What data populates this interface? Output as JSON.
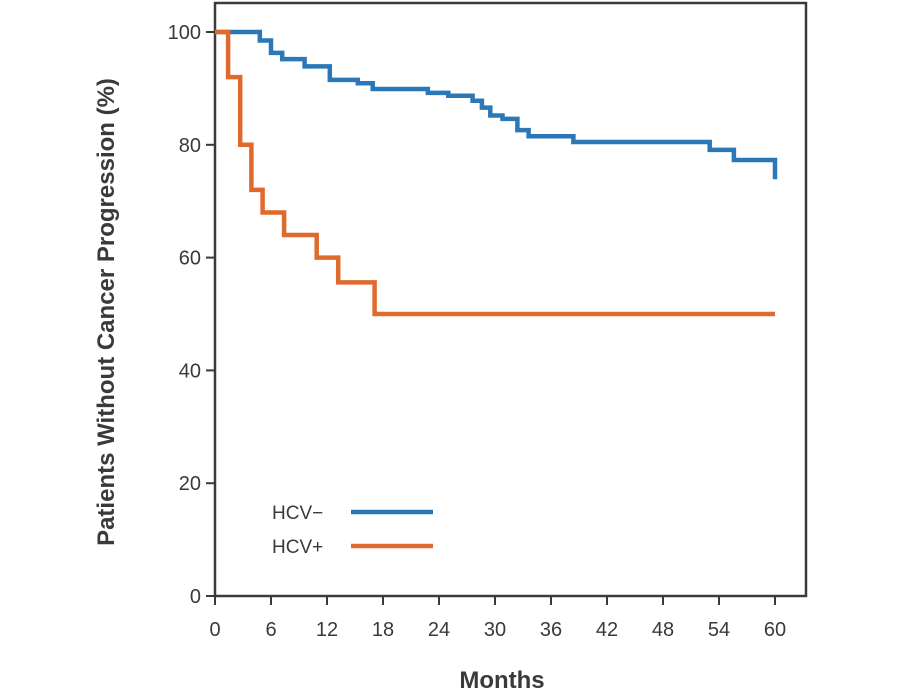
{
  "chart_data": {
    "type": "line",
    "step": true,
    "xlabel": "Months",
    "ylabel": "Patients Without Cancer Progression (%)",
    "xlim": [
      0,
      60
    ],
    "ylim": [
      0,
      100
    ],
    "xticks": [
      0,
      6,
      12,
      18,
      24,
      30,
      36,
      42,
      48,
      54,
      60
    ],
    "yticks": [
      0,
      20,
      40,
      60,
      80,
      100
    ],
    "grid": false,
    "legend_position": "bottom-left",
    "series": [
      {
        "name": "HCV−",
        "color": "#2a78b8",
        "points": [
          [
            0,
            100
          ],
          [
            4.8,
            100
          ],
          [
            4.8,
            98.5
          ],
          [
            6,
            98.5
          ],
          [
            6,
            96.3
          ],
          [
            7.2,
            96.3
          ],
          [
            7.2,
            95.2
          ],
          [
            9.6,
            95.2
          ],
          [
            9.6,
            93.9
          ],
          [
            12.3,
            93.9
          ],
          [
            12.3,
            91.5
          ],
          [
            15.3,
            91.5
          ],
          [
            15.3,
            90.9
          ],
          [
            16.9,
            90.9
          ],
          [
            16.9,
            89.9
          ],
          [
            22.8,
            89.9
          ],
          [
            22.8,
            89.2
          ],
          [
            25,
            89.2
          ],
          [
            25,
            88.7
          ],
          [
            27.6,
            88.7
          ],
          [
            27.6,
            87.8
          ],
          [
            28.6,
            87.8
          ],
          [
            28.6,
            86.6
          ],
          [
            29.5,
            86.6
          ],
          [
            29.5,
            85.2
          ],
          [
            30.8,
            85.2
          ],
          [
            30.8,
            84.6
          ],
          [
            32.4,
            84.6
          ],
          [
            32.4,
            82.6
          ],
          [
            33.6,
            82.6
          ],
          [
            33.6,
            81.5
          ],
          [
            38.4,
            81.5
          ],
          [
            38.4,
            80.5
          ],
          [
            53,
            80.5
          ],
          [
            53,
            79.1
          ],
          [
            55.6,
            79.1
          ],
          [
            55.6,
            77.3
          ],
          [
            60,
            77.3
          ],
          [
            60,
            73.9
          ]
        ]
      },
      {
        "name": "HCV+",
        "color": "#e06a2e",
        "points": [
          [
            0,
            100
          ],
          [
            1.4,
            100
          ],
          [
            1.4,
            92
          ],
          [
            2.7,
            92
          ],
          [
            2.7,
            80
          ],
          [
            3.9,
            80
          ],
          [
            3.9,
            72
          ],
          [
            5.1,
            72
          ],
          [
            5.1,
            68
          ],
          [
            7.4,
            68
          ],
          [
            7.4,
            64
          ],
          [
            10.9,
            64
          ],
          [
            10.9,
            60
          ],
          [
            13.2,
            60
          ],
          [
            13.2,
            55.6
          ],
          [
            17.1,
            55.6
          ],
          [
            17.1,
            50
          ],
          [
            60,
            50
          ]
        ]
      }
    ]
  }
}
